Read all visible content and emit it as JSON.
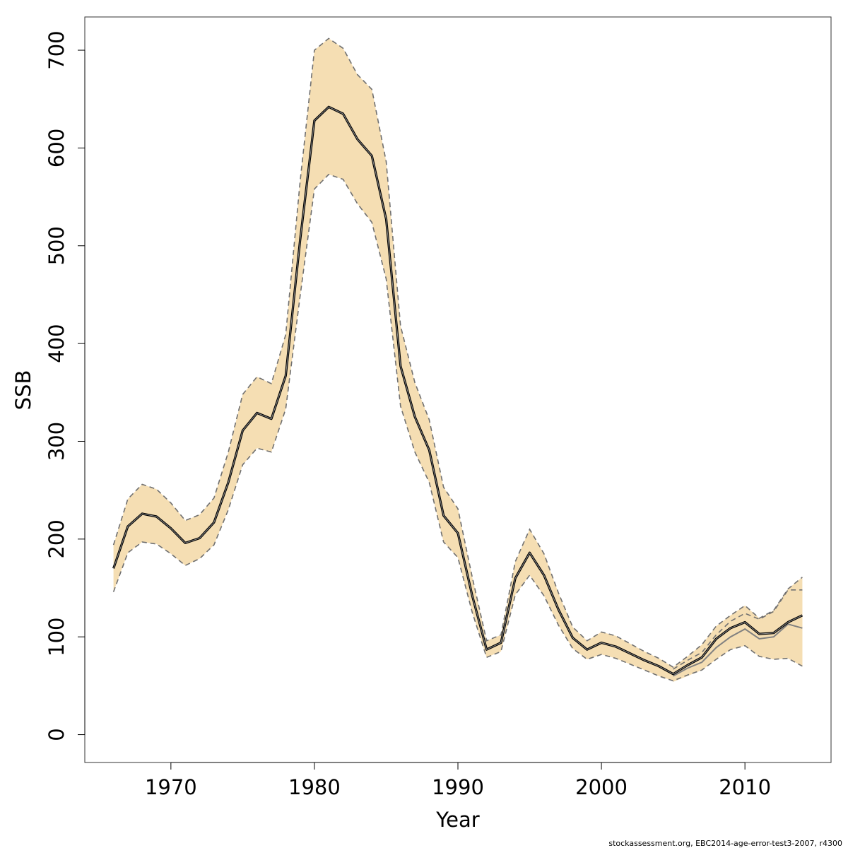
{
  "chart_data": {
    "type": "line",
    "xlabel": "Year",
    "ylabel": "SSB",
    "xlim": [
      1964,
      2016
    ],
    "ylim": [
      -28.5,
      734
    ],
    "x_ticks": [
      1970,
      1980,
      1990,
      2000,
      2010
    ],
    "y_ticks": [
      0,
      100,
      200,
      300,
      400,
      500,
      600,
      700
    ],
    "grid": false,
    "legend": "none",
    "footnote": "stockassessment.org, EBC2014-age-error-test3-2007, r4300",
    "colors": {
      "band": "#F5DEB3",
      "main_line": "#000000",
      "previous_line": "#808080",
      "bound_lines": "#707070"
    },
    "series": [
      {
        "role": "estimate",
        "x": [
          1966,
          1967,
          1968,
          1969,
          1970,
          1971,
          1972,
          1973,
          1974,
          1975,
          1976,
          1977,
          1978,
          1979,
          1980,
          1981,
          1982,
          1983,
          1984,
          1985,
          1986,
          1987,
          1988,
          1989,
          1990,
          1991,
          1992,
          1993,
          1994,
          1995,
          1996,
          1997,
          1998,
          1999,
          2000,
          2001,
          2002,
          2003,
          2004,
          2005,
          2006,
          2007,
          2008,
          2009,
          2010,
          2011,
          2012,
          2013,
          2014
        ],
        "values": [
          170,
          213,
          226,
          223,
          211,
          196,
          201,
          217,
          258,
          311,
          329,
          323,
          367,
          505,
          628,
          642,
          635,
          609,
          592,
          527,
          377,
          325,
          291,
          224,
          206,
          142,
          87,
          94,
          160,
          186,
          163,
          128,
          99,
          87,
          94,
          90,
          83,
          76,
          70,
          62,
          71,
          79,
          98,
          109,
          115,
          103,
          104,
          115,
          122
        ]
      },
      {
        "role": "upper",
        "x": [
          1966,
          1967,
          1968,
          1969,
          1970,
          1971,
          1972,
          1973,
          1974,
          1975,
          1976,
          1977,
          1978,
          1979,
          1980,
          1981,
          1982,
          1983,
          1984,
          1985,
          1986,
          1987,
          1988,
          1989,
          1990,
          1991,
          1992,
          1993,
          1994,
          1995,
          1996,
          1997,
          1998,
          1999,
          2000,
          2001,
          2002,
          2003,
          2004,
          2005,
          2006,
          2007,
          2008,
          2009,
          2010,
          2011,
          2012,
          2013,
          2014
        ],
        "values": [
          194,
          241,
          256,
          251,
          237,
          219,
          225,
          242,
          289,
          348,
          366,
          359,
          409,
          565,
          700,
          712,
          702,
          675,
          660,
          586,
          418,
          360,
          322,
          253,
          231,
          161,
          96,
          102,
          177,
          210,
          185,
          145,
          110,
          96,
          105,
          101,
          93,
          85,
          78,
          69,
          80,
          92,
          111,
          122,
          132,
          119,
          127,
          149,
          161
        ]
      },
      {
        "role": "lower",
        "x": [
          1966,
          1967,
          1968,
          1969,
          1970,
          1971,
          1972,
          1973,
          1974,
          1975,
          1976,
          1977,
          1978,
          1979,
          1980,
          1981,
          1982,
          1983,
          1984,
          1985,
          1986,
          1987,
          1988,
          1989,
          1990,
          1991,
          1992,
          1993,
          1994,
          1995,
          1996,
          1997,
          1998,
          1999,
          2000,
          2001,
          2002,
          2003,
          2004,
          2005,
          2006,
          2007,
          2008,
          2009,
          2010,
          2011,
          2012,
          2013,
          2014
        ],
        "values": [
          146,
          186,
          197,
          195,
          185,
          173,
          180,
          194,
          230,
          276,
          293,
          289,
          333,
          448,
          558,
          573,
          568,
          543,
          524,
          466,
          336,
          289,
          258,
          197,
          181,
          125,
          79,
          85,
          143,
          163,
          142,
          112,
          88,
          77,
          82,
          78,
          72,
          66,
          60,
          55,
          61,
          66,
          77,
          87,
          91,
          80,
          77,
          78,
          70
        ]
      },
      {
        "role": "previous-estimate",
        "x": [
          2005,
          2006,
          2007,
          2008,
          2009,
          2010,
          2011,
          2012,
          2013,
          2014
        ],
        "values": [
          60,
          68,
          74,
          89,
          100,
          108,
          98,
          100,
          113,
          109
        ]
      },
      {
        "role": "previous-upper",
        "x": [
          2005,
          2006,
          2007,
          2008,
          2009,
          2010,
          2011,
          2012,
          2013,
          2014
        ],
        "values": [
          67,
          76,
          84,
          102,
          116,
          124,
          118,
          126,
          148,
          148
        ]
      },
      {
        "role": "previous-lower",
        "x": [
          2005,
          2006,
          2007,
          2008,
          2009,
          2010,
          2011,
          2012,
          2013,
          2014
        ],
        "values": [
          54,
          60,
          66,
          77,
          87,
          91,
          80,
          77,
          78,
          70
        ]
      }
    ]
  }
}
